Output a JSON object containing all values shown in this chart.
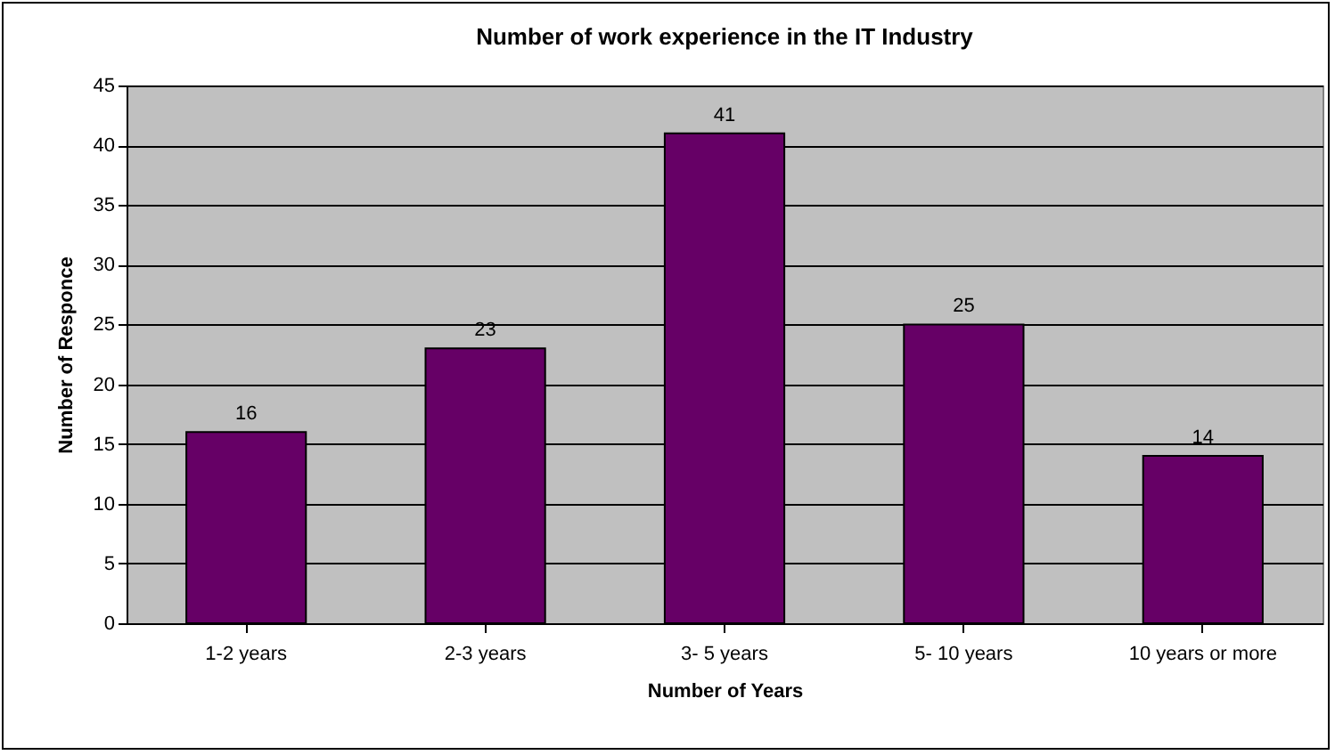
{
  "chart_data": {
    "type": "bar",
    "title": "Number of work experience in the IT Industry",
    "xlabel": "Number of Years",
    "ylabel": "Number of Responce",
    "categories": [
      "1-2 years",
      "2-3 years",
      "3- 5 years",
      "5- 10 years",
      "10 years or more"
    ],
    "values": [
      16,
      23,
      41,
      25,
      14
    ],
    "color": "#660066",
    "ylim": [
      0,
      45
    ],
    "yticks": [
      0,
      5,
      10,
      15,
      20,
      25,
      30,
      35,
      40,
      45
    ],
    "grid": "y",
    "data_labels": true
  }
}
